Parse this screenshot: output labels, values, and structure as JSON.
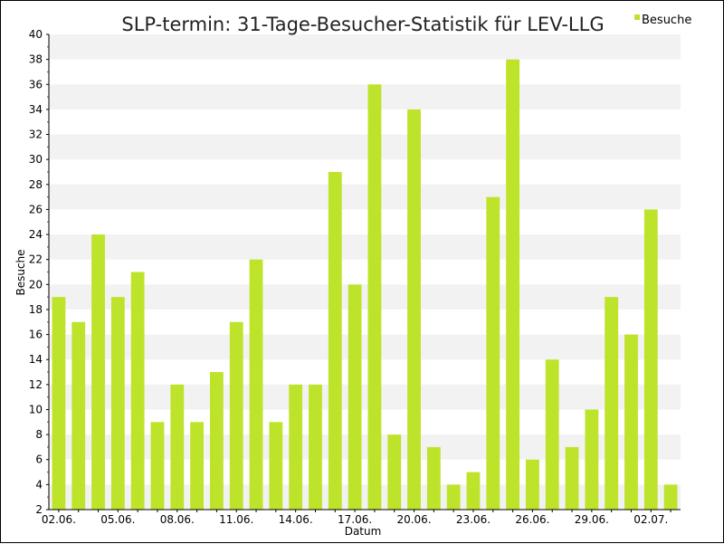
{
  "chart_data": {
    "type": "bar",
    "title": "SLP-termin: 31-Tage-Besucher-Statistik für LEV-LLG",
    "xlabel": "Datum",
    "ylabel": "Besuche",
    "ylim": [
      2,
      40
    ],
    "y_tick_step": 2,
    "grid": "horizontal bands",
    "legend": {
      "position": "top-right",
      "entries": [
        "Besuche"
      ]
    },
    "colors": {
      "bar": "#bde42a",
      "band": "#f2f2f2",
      "axis": "#000000",
      "tick_mark": "#cc0000"
    },
    "categories": [
      "02.06.",
      "03.06.",
      "04.06.",
      "05.06.",
      "06.06.",
      "07.06.",
      "08.06.",
      "09.06.",
      "10.06.",
      "11.06.",
      "12.06.",
      "13.06.",
      "14.06.",
      "15.06.",
      "16.06.",
      "17.06.",
      "18.06.",
      "19.06.",
      "20.06.",
      "21.06.",
      "22.06.",
      "23.06.",
      "24.06.",
      "25.06.",
      "26.06.",
      "27.06.",
      "28.06.",
      "29.06.",
      "30.06.",
      "01.07.",
      "02.07.",
      "03.07."
    ],
    "x_tick_labels": [
      "02.06.",
      "05.06.",
      "08.06.",
      "11.06.",
      "14.06.",
      "17.06.",
      "20.06.",
      "23.06.",
      "26.06.",
      "29.06.",
      "02.07."
    ],
    "series": [
      {
        "name": "Besuche",
        "values": [
          19,
          17,
          24,
          19,
          21,
          9,
          12,
          9,
          13,
          17,
          22,
          9,
          12,
          12,
          29,
          20,
          36,
          8,
          34,
          7,
          4,
          5,
          27,
          38,
          6,
          14,
          7,
          10,
          19,
          16,
          26,
          4
        ]
      }
    ]
  }
}
